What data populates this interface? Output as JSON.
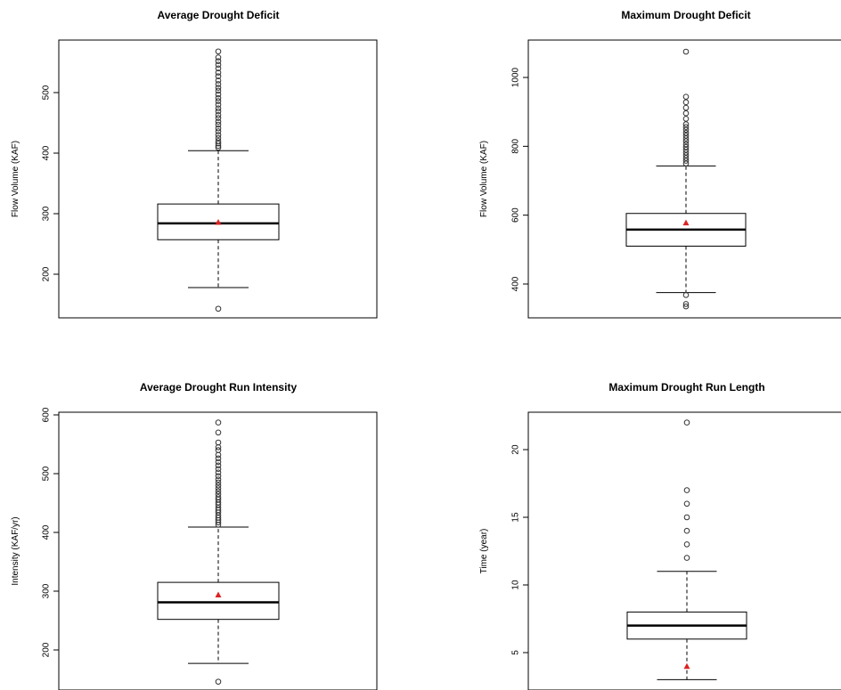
{
  "chart_data": [
    {
      "type": "boxplot",
      "title": "Average Drought Deficit",
      "ylabel": "Flow Volume (KAF)",
      "xlabel": "",
      "yticks": [
        200,
        300,
        400,
        500
      ],
      "box": {
        "whisker_low": 178,
        "q1": 257,
        "median": 284,
        "q3": 316,
        "whisker_high": 404,
        "mean": 286
      },
      "outliers_low": [
        143
      ],
      "outliers_high": [
        409,
        412,
        416,
        420,
        425,
        430,
        436,
        441,
        447,
        452,
        458,
        463,
        469,
        474,
        480,
        486,
        491,
        497,
        503,
        508,
        514,
        520,
        527,
        533,
        540,
        546,
        552,
        558,
        568
      ]
    },
    {
      "type": "boxplot",
      "title": "Maximum Drought Deficit",
      "ylabel": "Flow Volume (KAF)",
      "xlabel": "",
      "yticks": [
        400,
        600,
        800,
        1000
      ],
      "box": {
        "whisker_low": 375,
        "q1": 510,
        "median": 558,
        "q3": 605,
        "whisker_high": 743,
        "mean": 578
      },
      "outliers_low": [
        335,
        342,
        368
      ],
      "outliers_high": [
        750,
        758,
        766,
        774,
        782,
        790,
        798,
        806,
        815,
        823,
        831,
        839,
        848,
        856,
        864,
        880,
        896,
        912,
        928,
        944,
        1075
      ]
    },
    {
      "type": "boxplot",
      "title": "Average Drought Run Intensity",
      "ylabel": "Intensity (KAF/yr)",
      "xlabel": "",
      "yticks": [
        200,
        300,
        400,
        500,
        600
      ],
      "box": {
        "whisker_low": 177,
        "q1": 252,
        "median": 281,
        "q3": 315,
        "whisker_high": 409,
        "mean": 294
      },
      "outliers_low": [
        146
      ],
      "outliers_high": [
        413,
        417,
        421,
        425,
        429,
        434,
        438,
        442,
        447,
        451,
        456,
        460,
        465,
        470,
        475,
        480,
        485,
        490,
        496,
        502,
        508,
        514,
        520,
        526,
        532,
        540,
        545,
        553,
        570,
        587
      ]
    },
    {
      "type": "boxplot",
      "title": "Maximum Drought Run Length",
      "ylabel": "Time (year)",
      "xlabel": "",
      "yticks": [
        5,
        10,
        15,
        20
      ],
      "box": {
        "whisker_low": 3,
        "q1": 6,
        "median": 7,
        "q3": 8,
        "whisker_high": 11,
        "mean": 4
      },
      "outliers_low": [],
      "outliers_high": [
        12,
        13,
        14,
        15,
        16,
        17,
        22
      ]
    }
  ]
}
